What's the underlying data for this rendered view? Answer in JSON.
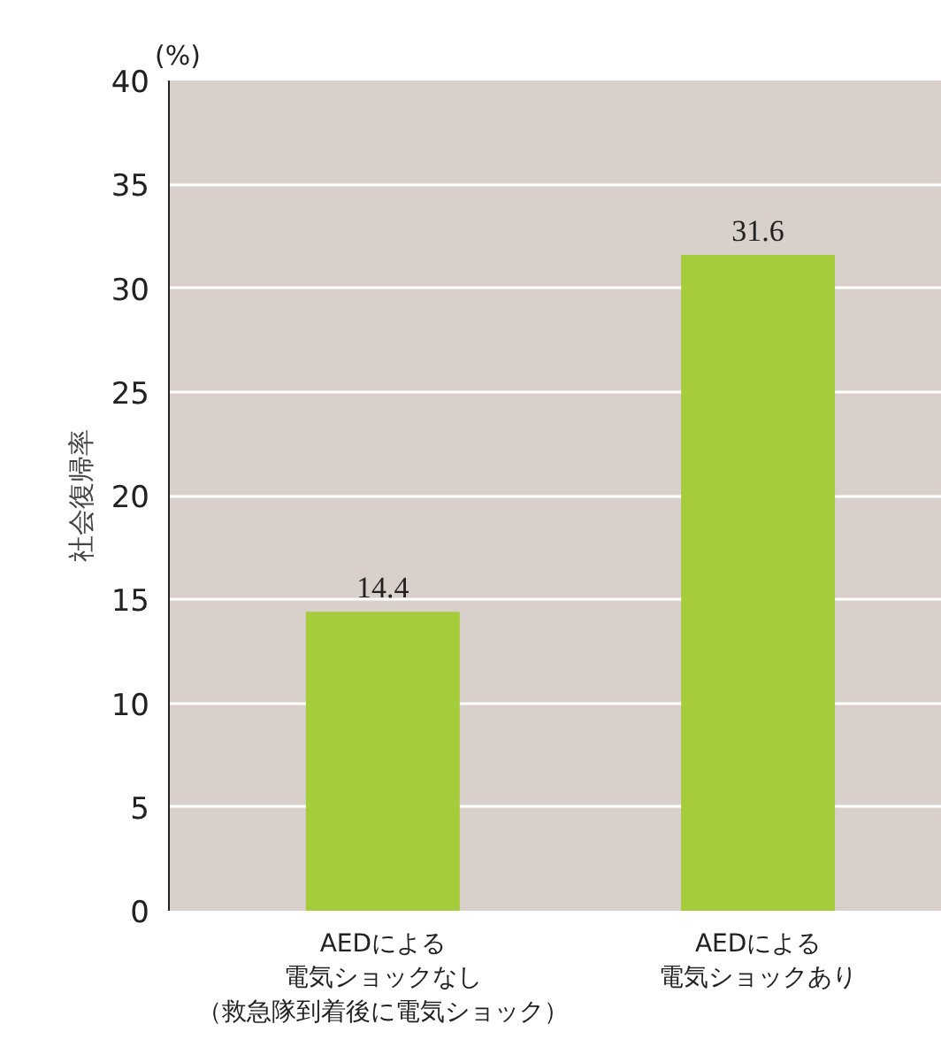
{
  "chart_data": {
    "type": "bar",
    "ylabel": "社会復帰率",
    "annotations": [
      "(%)"
    ],
    "categories": [
      "AEDによる電気ショックなし（救急隊到着後に電気ショック）",
      "AEDによる電気ショックあり"
    ],
    "values": [
      14.4,
      31.6
    ],
    "color": "#a5cc3a",
    "ylim": [
      0,
      40
    ],
    "yticks": [
      0,
      5,
      10,
      15,
      20,
      25,
      30,
      35,
      40
    ],
    "grid": "y",
    "data_labels": true
  }
}
